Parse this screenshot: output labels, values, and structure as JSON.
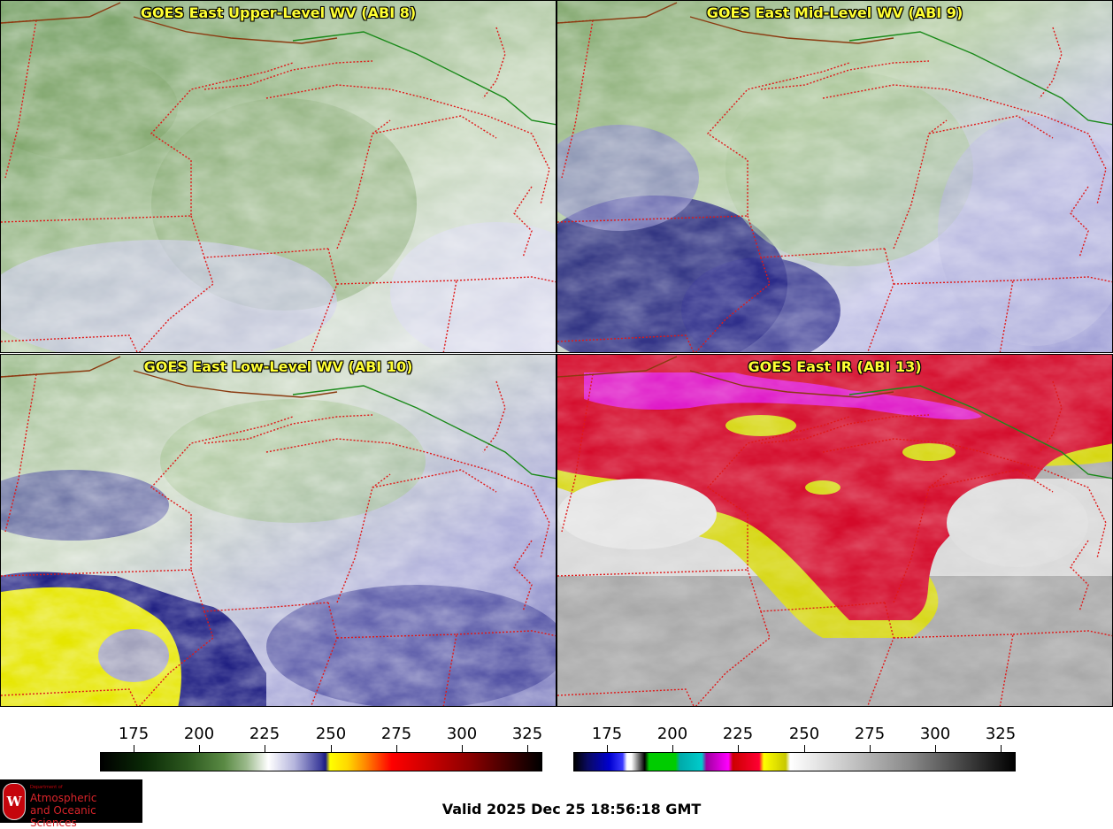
{
  "panels": [
    {
      "title": "GOES East Upper-Level WV (ABI 8)",
      "kind": "wv_upper"
    },
    {
      "title": "GOES East Mid-Level WV (ABI 9)",
      "kind": "wv_mid"
    },
    {
      "title": "GOES East Low-Level WV (ABI 10)",
      "kind": "wv_low"
    },
    {
      "title": "GOES East IR (ABI 13)",
      "kind": "ir"
    }
  ],
  "colorbars": {
    "wv": {
      "ticks": [
        "175",
        "200",
        "225",
        "250",
        "275",
        "300",
        "325"
      ]
    },
    "ir": {
      "ticks": [
        "175",
        "200",
        "225",
        "250",
        "275",
        "300",
        "325"
      ]
    }
  },
  "logo": {
    "dept": "Department of",
    "line1": "Atmospheric",
    "line2": "and Oceanic Sciences",
    "crest": "W"
  },
  "valid_time": "Valid 2025 Dec 25 18:56:18 GMT",
  "colors": {
    "state_border": "#e01818",
    "country_border": "#1a8a1a",
    "coast_border": "#8b3a10",
    "title": "#ffff33"
  }
}
